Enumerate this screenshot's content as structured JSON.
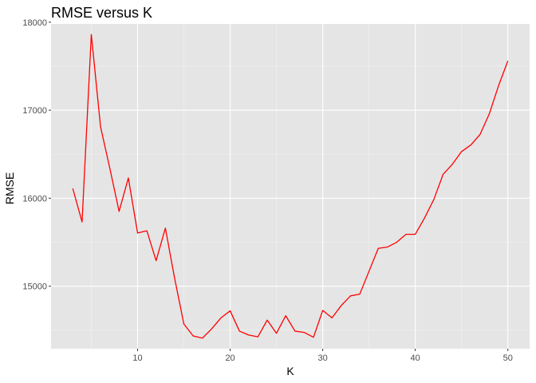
{
  "chart_data": {
    "type": "line",
    "title": "RMSE versus K",
    "xlabel": "K",
    "ylabel": "RMSE",
    "xlim": [
      0.65,
      52.35
    ],
    "ylim": [
      14290,
      17980
    ],
    "xticks": [
      10,
      20,
      30,
      40,
      50
    ],
    "yticks": [
      15000,
      16000,
      17000,
      18000
    ],
    "grid": true,
    "background": "#e5e5e5",
    "series": [
      {
        "color": "#ff0000",
        "x": [
          3,
          4,
          5,
          6,
          7,
          8,
          9,
          10,
          11,
          12,
          13,
          14,
          15,
          16,
          17,
          18,
          19,
          20,
          21,
          22,
          23,
          24,
          25,
          26,
          27,
          28,
          29,
          30,
          31,
          32,
          33,
          34,
          35,
          36,
          37,
          38,
          39,
          40,
          41,
          42,
          43,
          44,
          45,
          46,
          47,
          48,
          49,
          50
        ],
        "y": [
          16110,
          15730,
          17860,
          16810,
          16340,
          15850,
          16230,
          15605,
          15630,
          15290,
          15660,
          15090,
          14570,
          14435,
          14410,
          14515,
          14640,
          14720,
          14490,
          14445,
          14425,
          14615,
          14465,
          14665,
          14490,
          14475,
          14420,
          14725,
          14640,
          14780,
          14890,
          14910,
          15170,
          15430,
          15445,
          15500,
          15590,
          15590,
          15775,
          15985,
          16270,
          16385,
          16530,
          16605,
          16725,
          16960,
          17280,
          17560
        ]
      }
    ]
  }
}
